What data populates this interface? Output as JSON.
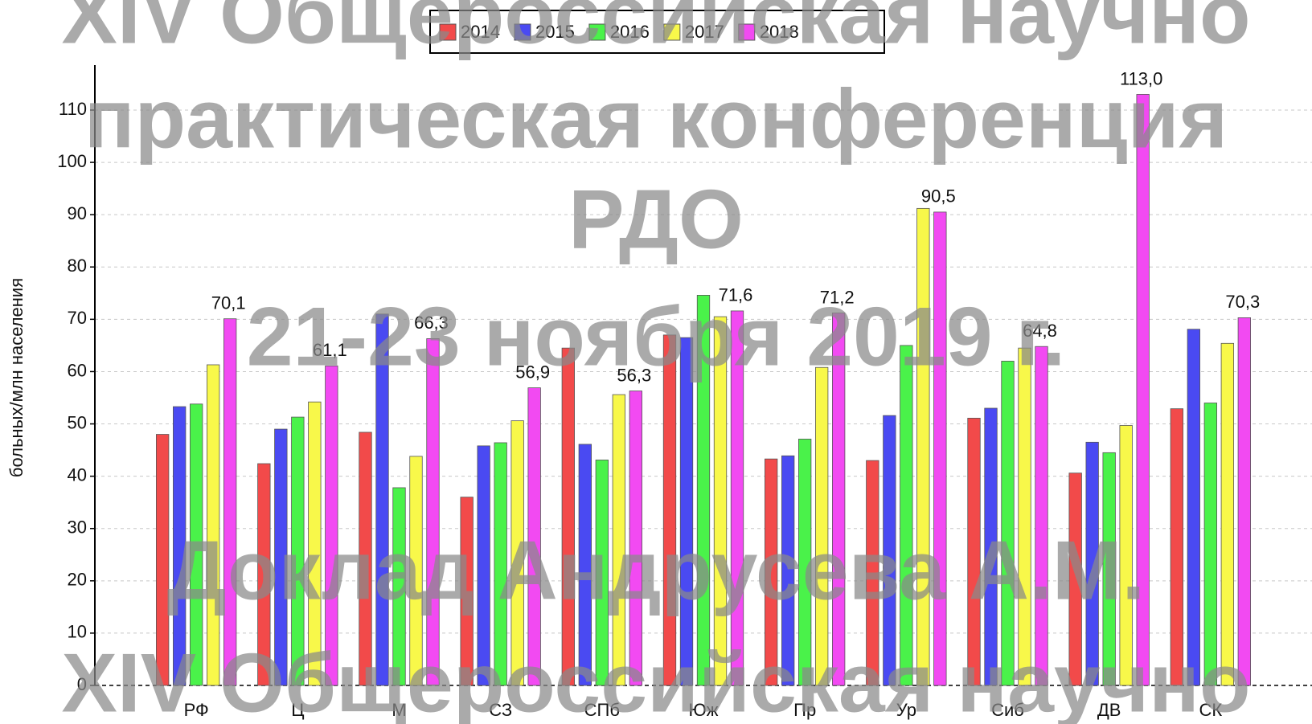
{
  "chart_data": {
    "type": "bar",
    "categories": [
      "РФ",
      "Ц",
      "М",
      "СЗ",
      "СПб",
      "Юж",
      "Пр",
      "Ур",
      "Сиб",
      "ДВ",
      "СК"
    ],
    "series": [
      {
        "name": "2014",
        "color": "#f24a4a",
        "values": [
          48,
          42.4,
          48.4,
          36,
          64.5,
          67,
          43.3,
          43,
          51.1,
          40.6,
          52.9
        ]
      },
      {
        "name": "2015",
        "color": "#4a4af2",
        "values": [
          53.3,
          49,
          71,
          45.8,
          46.1,
          66.5,
          43.9,
          51.6,
          53,
          46.5,
          68.1
        ]
      },
      {
        "name": "2016",
        "color": "#4af24a",
        "values": [
          53.8,
          51.3,
          37.8,
          46.4,
          43.1,
          74.6,
          47.1,
          65,
          62,
          44.5,
          54
        ]
      },
      {
        "name": "2017",
        "color": "#f8f84a",
        "values": [
          61.3,
          54.2,
          43.8,
          50.6,
          55.6,
          70.5,
          60.8,
          91.2,
          64.5,
          49.7,
          65.4
        ]
      },
      {
        "name": "2018",
        "color": "#f24af2",
        "values": [
          70.1,
          61.1,
          66.3,
          56.9,
          56.3,
          71.6,
          71.2,
          90.5,
          64.8,
          113.0,
          70.3
        ],
        "value_labels": [
          "70,1",
          "61,1",
          "66,3",
          "56,9",
          "56,3",
          "71,6",
          "71,2",
          "90,5",
          "64,8",
          "113,0",
          "70,3"
        ]
      }
    ],
    "y_label": "больных/млн населения",
    "ylim": [
      0,
      118.6
    ],
    "yticks": [
      0,
      10,
      20,
      30,
      40,
      50,
      60,
      70,
      80,
      90,
      100,
      110
    ],
    "grid": true,
    "legend": "top",
    "watermark": [
      "XIV Общероссийская научно",
      "практическая конференция",
      "РДО",
      "21-23 ноября 2019 г.",
      "Доклад Андрусева А.М.",
      "XIV Общероссийская научно"
    ]
  }
}
